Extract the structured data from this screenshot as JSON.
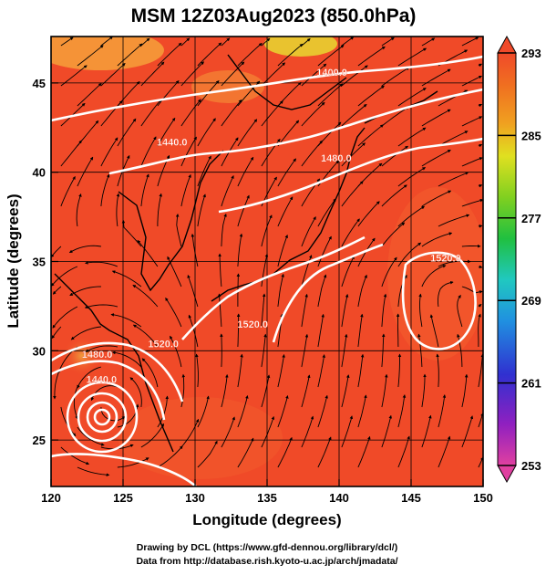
{
  "title": "MSM 12Z03Aug2023 (850.0hPa)",
  "x_axis": {
    "label": "Longitude (degrees)",
    "ticks": [
      120,
      125,
      130,
      135,
      140,
      145,
      150
    ],
    "range": [
      120,
      150
    ]
  },
  "y_axis": {
    "label": "Latitude  (degrees)",
    "ticks": [
      25,
      30,
      35,
      40,
      45
    ],
    "range": [
      22.4,
      47.6
    ]
  },
  "colorbar": {
    "ticks": [
      293,
      285,
      277,
      269,
      261,
      253
    ],
    "range": [
      253,
      293
    ],
    "colors": [
      "#e05090",
      "#a020c0",
      "#3030d0",
      "#2090e0",
      "#20c8c0",
      "#20c040",
      "#70d020",
      "#d8e020",
      "#f0a020",
      "#f07020",
      "#f04a2a"
    ]
  },
  "field_colors": {
    "main": "#f04a28",
    "warm": "#f25a2c",
    "cool": "#f6a03a",
    "yellow": "#e8d830",
    "contour": "#ffffff",
    "streamline": "#000000",
    "grid": "#000000"
  },
  "contours": [
    {
      "label": "1400.0",
      "lon": 139.5,
      "lat": 45.4
    },
    {
      "label": "1440.0",
      "lon": 128.4,
      "lat": 41.5
    },
    {
      "label": "1480.0",
      "lon": 139.8,
      "lat": 40.6
    },
    {
      "label": "1520.0",
      "lon": 147.4,
      "lat": 35.0
    },
    {
      "label": "1520.0",
      "lon": 127.8,
      "lat": 30.2
    },
    {
      "label": "1520.0",
      "lon": 134.0,
      "lat": 31.3
    },
    {
      "label": "1480.0",
      "lon": 123.2,
      "lat": 29.6
    },
    {
      "label": "1440.0",
      "lon": 123.5,
      "lat": 28.2
    }
  ],
  "typhoon_center": {
    "lon": 124.3,
    "lat": 26.8
  },
  "credits": {
    "line1": "Drawing by DCL (https://www.gfd-dennou.org/library/dcl/)",
    "line2": "Data from http://database.rish.kyoto-u.ac.jp/arch/jmadata/"
  }
}
